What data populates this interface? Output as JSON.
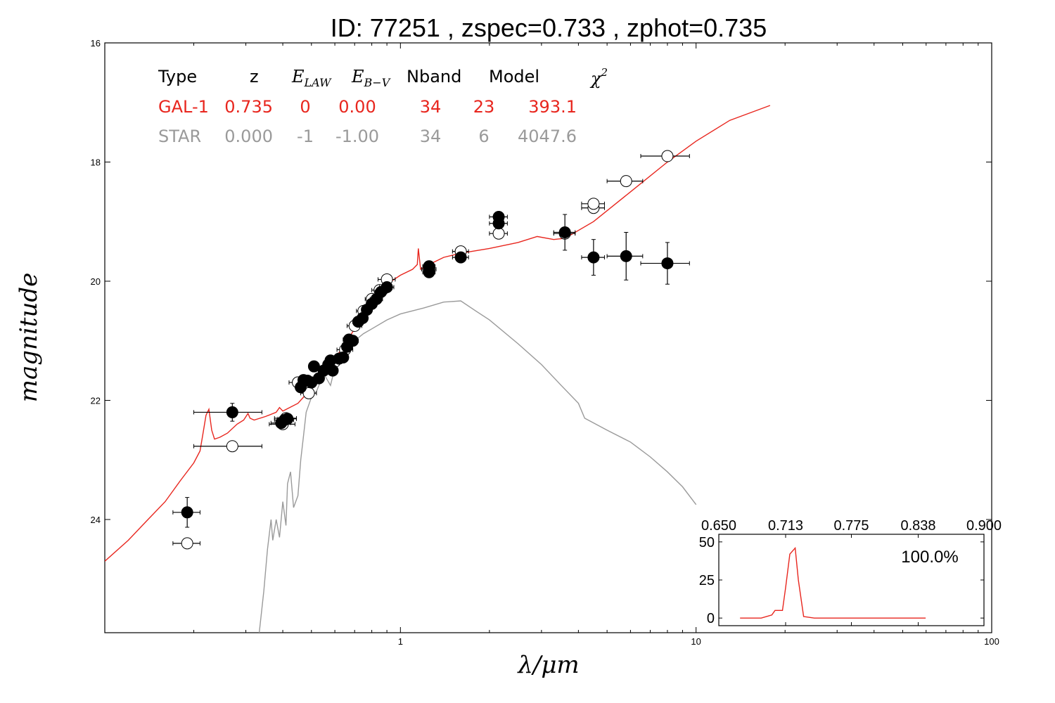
{
  "chart_data": [
    {
      "type": "scatter",
      "title": "ID:  77251 , zspec=0.733 , zphot=0.735",
      "xlabel": "λ/μm",
      "ylabel": "magnitude",
      "xscale": "log",
      "xlim": [
        0.1,
        100
      ],
      "ylim": [
        25.9,
        16
      ],
      "y_inverted": true,
      "grid": false,
      "x_ticks": [
        {
          "v": 1,
          "label": "1"
        },
        {
          "v": 10,
          "label": "10"
        },
        {
          "v": 100,
          "label": "100"
        }
      ],
      "y_ticks": [
        {
          "v": 16,
          "label": "16"
        },
        {
          "v": 18,
          "label": "18"
        },
        {
          "v": 20,
          "label": "20"
        },
        {
          "v": 22,
          "label": "22"
        },
        {
          "v": 24,
          "label": "24"
        }
      ],
      "legend_table": {
        "headers": [
          "Type",
          "z",
          "E_LAW",
          "E_B-V",
          "Nband",
          "Model",
          "χ²"
        ],
        "rows": [
          {
            "values": [
              "GAL-1",
              "0.735",
              "0",
              "0.00",
              "34",
              "23",
              "393.1"
            ],
            "color": "#e8261e"
          },
          {
            "values": [
              "STAR",
              "0.000",
              "-1",
              "-1.00",
              "34",
              "6",
              "4047.6"
            ],
            "color": "#9a9a9a"
          }
        ]
      },
      "series": [
        {
          "kind": "line",
          "color": "#e8261e",
          "points": [
            [
              0.1,
              24.7
            ],
            [
              0.12,
              24.35
            ],
            [
              0.14,
              24.0
            ],
            [
              0.16,
              23.7
            ],
            [
              0.18,
              23.35
            ],
            [
              0.2,
              23.05
            ],
            [
              0.21,
              22.85
            ],
            [
              0.215,
              22.55
            ],
            [
              0.22,
              22.25
            ],
            [
              0.225,
              22.15
            ],
            [
              0.23,
              22.5
            ],
            [
              0.235,
              22.65
            ],
            [
              0.245,
              22.62
            ],
            [
              0.26,
              22.55
            ],
            [
              0.28,
              22.4
            ],
            [
              0.295,
              22.33
            ],
            [
              0.305,
              22.22
            ],
            [
              0.31,
              22.3
            ],
            [
              0.32,
              22.33
            ],
            [
              0.35,
              22.27
            ],
            [
              0.38,
              22.2
            ],
            [
              0.39,
              22.12
            ],
            [
              0.4,
              22.18
            ],
            [
              0.45,
              22.05
            ],
            [
              0.5,
              21.8
            ],
            [
              0.55,
              21.55
            ],
            [
              0.6,
              21.3
            ],
            [
              0.65,
              21.05
            ],
            [
              0.7,
              20.8
            ],
            [
              0.75,
              20.55
            ],
            [
              0.8,
              20.35
            ],
            [
              0.85,
              20.2
            ],
            [
              0.9,
              20.05
            ],
            [
              1.0,
              19.9
            ],
            [
              1.1,
              19.8
            ],
            [
              1.14,
              19.72
            ],
            [
              1.15,
              19.45
            ],
            [
              1.17,
              19.8
            ],
            [
              1.25,
              19.72
            ],
            [
              1.4,
              19.6
            ],
            [
              1.6,
              19.53
            ],
            [
              2.0,
              19.45
            ],
            [
              2.5,
              19.35
            ],
            [
              2.9,
              19.25
            ],
            [
              3.3,
              19.3
            ],
            [
              3.6,
              19.28
            ],
            [
              4.5,
              19.0
            ],
            [
              6.0,
              18.5
            ],
            [
              8.0,
              18.0
            ],
            [
              10.0,
              17.65
            ],
            [
              13.0,
              17.3
            ],
            [
              17.8,
              17.05
            ]
          ]
        },
        {
          "kind": "line",
          "color": "#9a9a9a",
          "points": [
            [
              0.333,
              25.9
            ],
            [
              0.345,
              25.2
            ],
            [
              0.355,
              24.5
            ],
            [
              0.365,
              24.0
            ],
            [
              0.37,
              24.35
            ],
            [
              0.38,
              24.0
            ],
            [
              0.39,
              24.3
            ],
            [
              0.4,
              23.7
            ],
            [
              0.41,
              24.1
            ],
            [
              0.415,
              23.4
            ],
            [
              0.425,
              23.2
            ],
            [
              0.435,
              23.8
            ],
            [
              0.45,
              23.6
            ],
            [
              0.46,
              23.0
            ],
            [
              0.47,
              22.6
            ],
            [
              0.48,
              22.2
            ],
            [
              0.5,
              21.95
            ],
            [
              0.52,
              21.85
            ],
            [
              0.55,
              21.55
            ],
            [
              0.58,
              21.75
            ],
            [
              0.6,
              21.45
            ],
            [
              0.65,
              21.15
            ],
            [
              0.7,
              21.0
            ],
            [
              0.75,
              20.88
            ],
            [
              0.8,
              20.8
            ],
            [
              0.9,
              20.65
            ],
            [
              1.0,
              20.55
            ],
            [
              1.2,
              20.45
            ],
            [
              1.4,
              20.35
            ],
            [
              1.6,
              20.33
            ],
            [
              1.8,
              20.5
            ],
            [
              2.0,
              20.65
            ],
            [
              2.5,
              21.05
            ],
            [
              3.0,
              21.4
            ],
            [
              3.5,
              21.75
            ],
            [
              4.0,
              22.05
            ],
            [
              4.2,
              22.3
            ],
            [
              5.0,
              22.5
            ],
            [
              6.0,
              22.7
            ],
            [
              7.0,
              22.95
            ],
            [
              8.0,
              23.2
            ],
            [
              9.0,
              23.45
            ],
            [
              10.0,
              23.75
            ]
          ]
        }
      ],
      "points_open": [
        [
          0.19,
          24.4,
          0.02,
          0.06
        ],
        [
          0.27,
          22.77,
          0.07,
          0
        ],
        [
          0.4,
          22.4,
          0.04,
          0.05
        ],
        [
          0.41,
          22.3,
          0.035,
          0
        ],
        [
          0.45,
          21.7,
          0.03,
          0
        ],
        [
          0.49,
          21.88,
          0.03,
          0
        ],
        [
          0.6,
          21.35,
          0.03,
          0
        ],
        [
          0.65,
          21.15,
          0.04,
          0
        ],
        [
          0.7,
          20.75,
          0.04,
          0
        ],
        [
          0.75,
          20.5,
          0.04,
          0
        ],
        [
          0.8,
          20.3,
          0.04,
          0
        ],
        [
          0.85,
          20.15,
          0.05,
          0
        ],
        [
          0.9,
          19.97,
          0.06,
          0
        ],
        [
          1.25,
          19.8,
          0.07,
          0
        ],
        [
          1.6,
          19.5,
          0.1,
          0
        ],
        [
          2.15,
          19.2,
          0.15,
          0
        ],
        [
          3.6,
          19.2,
          0.3,
          0
        ],
        [
          4.5,
          18.77,
          0.4,
          0
        ],
        [
          4.5,
          18.7,
          0.4,
          0
        ],
        [
          5.8,
          18.32,
          0.8,
          0
        ],
        [
          8.0,
          17.9,
          1.5,
          0
        ]
      ],
      "points_filled": [
        [
          0.19,
          23.88,
          0.02,
          0.25
        ],
        [
          0.27,
          22.2,
          0.07,
          0.15
        ],
        [
          0.395,
          22.38,
          0.03,
          0
        ],
        [
          0.405,
          22.33,
          0.03,
          0
        ],
        [
          0.415,
          22.31,
          0.03,
          0
        ],
        [
          0.46,
          21.78,
          0.015,
          0
        ],
        [
          0.47,
          21.66,
          0.015,
          0
        ],
        [
          0.485,
          21.67,
          0.015,
          0
        ],
        [
          0.5,
          21.7,
          0.015,
          0
        ],
        [
          0.51,
          21.43,
          0.015,
          0
        ],
        [
          0.53,
          21.63,
          0.015,
          0
        ],
        [
          0.55,
          21.5,
          0.015,
          0
        ],
        [
          0.57,
          21.4,
          0.015,
          0
        ],
        [
          0.58,
          21.33,
          0.015,
          0
        ],
        [
          0.59,
          21.5,
          0.015,
          0
        ],
        [
          0.62,
          21.3,
          0.02,
          0
        ],
        [
          0.64,
          21.28,
          0.02,
          0
        ],
        [
          0.66,
          21.1,
          0.02,
          0
        ],
        [
          0.67,
          20.98,
          0.03,
          0
        ],
        [
          0.69,
          21.0,
          0.03,
          0
        ],
        [
          0.72,
          20.68,
          0.03,
          0
        ],
        [
          0.745,
          20.62,
          0.03,
          0
        ],
        [
          0.77,
          20.48,
          0.03,
          0
        ],
        [
          0.8,
          20.38,
          0.03,
          0
        ],
        [
          0.83,
          20.3,
          0.04,
          0
        ],
        [
          0.86,
          20.18,
          0.04,
          0
        ],
        [
          0.9,
          20.1,
          0.05,
          0
        ],
        [
          1.25,
          19.75,
          0.06,
          0
        ],
        [
          1.25,
          19.85,
          0.06,
          0
        ],
        [
          1.6,
          19.6,
          0.1,
          0
        ],
        [
          2.15,
          19.03,
          0.15,
          0
        ],
        [
          2.15,
          18.92,
          0.15,
          0
        ],
        [
          3.6,
          19.18,
          0.3,
          0.3
        ],
        [
          4.5,
          19.6,
          0.4,
          0.3
        ],
        [
          5.8,
          19.58,
          0.8,
          0.4
        ],
        [
          8.0,
          19.7,
          1.5,
          0.35
        ]
      ]
    },
    {
      "type": "line",
      "title": "",
      "xlim": [
        0.65,
        0.9
      ],
      "ylim": [
        -5,
        55
      ],
      "x_ticks": [
        {
          "v": 0.65,
          "label": "0.650"
        },
        {
          "v": 0.713,
          "label": "0.713"
        },
        {
          "v": 0.775,
          "label": "0.775"
        },
        {
          "v": 0.838,
          "label": "0.838"
        },
        {
          "v": 0.9,
          "label": "0.900"
        }
      ],
      "y_ticks": [
        {
          "v": 0,
          "label": "0"
        },
        {
          "v": 25,
          "label": "25"
        },
        {
          "v": 50,
          "label": "50"
        }
      ],
      "annotation": "100.0%",
      "color": "#e8261e",
      "x": [
        0.67,
        0.69,
        0.7,
        0.703,
        0.71,
        0.713,
        0.717,
        0.722,
        0.725,
        0.73,
        0.74,
        0.8,
        0.845
      ],
      "y": [
        0,
        0,
        2,
        5,
        5,
        20,
        42,
        46,
        25,
        1,
        0,
        0,
        0
      ]
    }
  ]
}
